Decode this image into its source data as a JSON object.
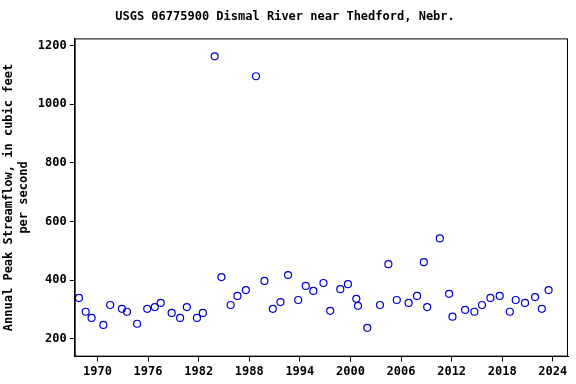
{
  "chart_data": {
    "type": "scatter",
    "title": "USGS 06775900 Dismal River near Thedford, Nebr.",
    "ylabel": [
      "Annual Peak Streamflow, in cubic feet",
      "per second"
    ],
    "x": [
      1967.8,
      1968.6,
      1969.3,
      1970.7,
      1971.5,
      1972.9,
      1973.5,
      1974.7,
      1975.9,
      1976.8,
      1977.5,
      1978.8,
      1979.8,
      1980.6,
      1981.8,
      1982.5,
      1983.9,
      1984.7,
      1985.8,
      1986.6,
      1987.6,
      1988.8,
      1989.8,
      1990.8,
      1991.7,
      1992.6,
      1993.8,
      1994.7,
      1995.6,
      1996.8,
      1997.6,
      1998.8,
      1999.7,
      2000.7,
      2000.9,
      2002.0,
      2003.5,
      2004.5,
      2005.5,
      2006.9,
      2007.9,
      2008.7,
      2009.1,
      2010.6,
      2011.7,
      2012.1,
      2013.6,
      2014.7,
      2015.6,
      2016.6,
      2017.7,
      2018.9,
      2019.6,
      2020.7,
      2021.9,
      2022.7,
      2023.5
    ],
    "values": [
      339,
      292,
      271,
      247,
      315,
      302,
      292,
      251,
      302,
      308,
      322,
      288,
      271,
      308,
      271,
      288,
      1163,
      410,
      315,
      346,
      366,
      1095,
      397,
      302,
      325,
      417,
      332,
      380,
      363,
      390,
      295,
      369,
      386,
      336,
      312,
      237,
      315,
      454,
      332,
      322,
      346,
      461,
      308,
      542,
      353,
      275,
      298,
      292,
      315,
      339,
      346,
      292,
      332,
      322,
      342,
      302,
      366
    ],
    "color": "#0000cc",
    "marker": "open_circle",
    "xlim": [
      1967.3,
      2025.8
    ],
    "xticks": [
      1970,
      1976,
      1982,
      1988,
      1994,
      2000,
      2006,
      2012,
      2018,
      2024
    ],
    "ylim": [
      139,
      1224
    ],
    "yticks": [
      200,
      400,
      600,
      800,
      1000,
      1200
    ],
    "grid": false
  }
}
